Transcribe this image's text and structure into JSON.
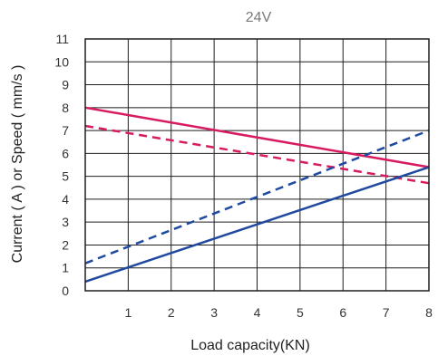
{
  "chart_data": {
    "type": "line",
    "title": "24V",
    "xlabel": "Load capacity(KN)",
    "ylabel": "Current ( A ) or Speed ( mm/s )",
    "xlim": [
      0,
      8
    ],
    "ylim": [
      0,
      11
    ],
    "x_ticks": [
      "1",
      "2",
      "3",
      "4",
      "5",
      "6",
      "7",
      "8"
    ],
    "y_ticks": [
      "0",
      "1",
      "2",
      "3",
      "4",
      "5",
      "6",
      "7",
      "8",
      "9",
      "10",
      "11"
    ],
    "grid": true,
    "colors": {
      "pink": "#d81b60",
      "blue": "#1f4aa0"
    },
    "series": [
      {
        "color": "#d81b60",
        "dash": "solid",
        "points": [
          [
            0,
            8.0
          ],
          [
            8,
            5.4
          ]
        ]
      },
      {
        "color": "#d81b60",
        "dash": "dashed",
        "points": [
          [
            0,
            7.2
          ],
          [
            8,
            4.7
          ]
        ]
      },
      {
        "color": "#1f4aa0",
        "dash": "dashed",
        "points": [
          [
            0,
            1.2
          ],
          [
            8,
            7.0
          ]
        ]
      },
      {
        "color": "#1f4aa0",
        "dash": "solid",
        "points": [
          [
            0,
            0.4
          ],
          [
            8,
            5.4
          ]
        ]
      }
    ]
  }
}
